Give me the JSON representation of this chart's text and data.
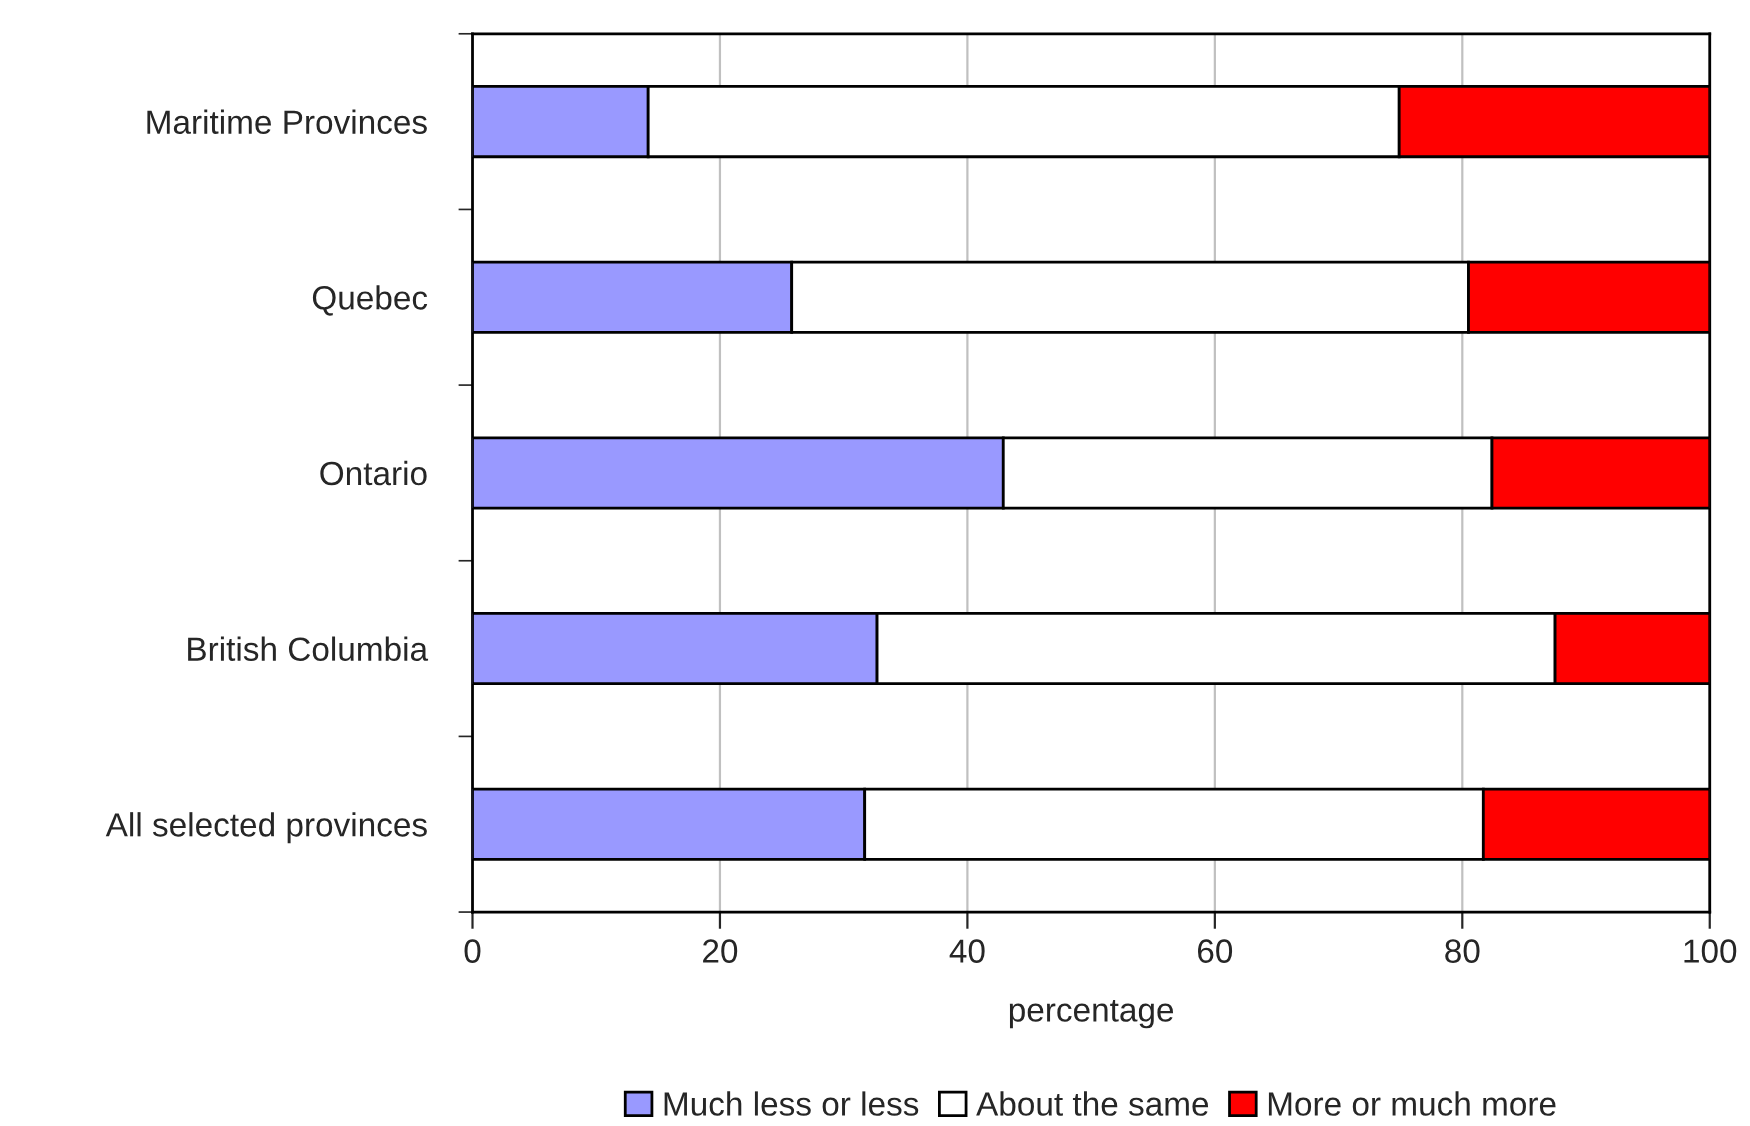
{
  "chart_data": {
    "type": "bar",
    "orientation": "horizontal",
    "stacked": true,
    "xlabel": "percentage",
    "categories": [
      "Maritime Provinces",
      "Quebec",
      "Ontario",
      "British Columbia",
      "All selected provinces"
    ],
    "series": [
      {
        "name": "Much less or less",
        "color": "#9999ff",
        "values": [
          14.2,
          25.8,
          42.9,
          32.7,
          31.7
        ]
      },
      {
        "name": "About the same",
        "color": "#ffffff",
        "values": [
          60.7,
          54.7,
          39.5,
          54.8,
          50.0
        ]
      },
      {
        "name": "More or much more",
        "color": "#ff0000",
        "values": [
          25.1,
          19.5,
          17.6,
          12.5,
          18.3
        ]
      }
    ],
    "xlim": [
      0,
      100
    ],
    "xticks": [
      0,
      20,
      40,
      60,
      80,
      100
    ],
    "grid": "x",
    "legend": "bottom"
  }
}
